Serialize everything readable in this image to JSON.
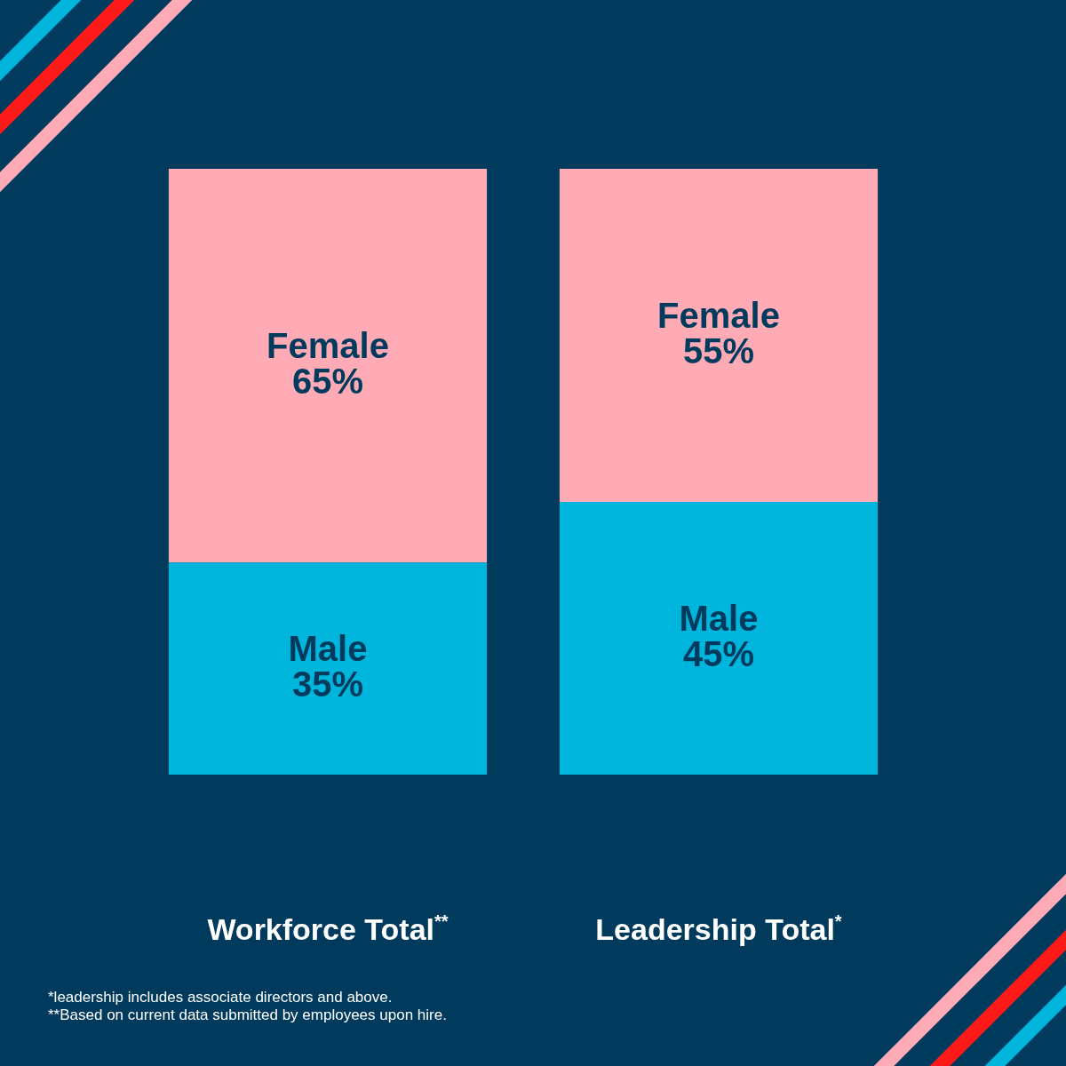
{
  "chart_data": {
    "type": "bar",
    "stacked": true,
    "categories": [
      "Workforce Total$^{**}$",
      "Leadership Total$^{*}$"
    ],
    "series": [
      {
        "name": "Male",
        "color": "#00b5dc",
        "values": [
          35,
          45
        ],
        "value_labels": [
          "35%",
          "45%"
        ]
      },
      {
        "name": "Female",
        "color": "#ffabb5",
        "values": [
          65,
          55
        ],
        "value_labels": [
          "65%",
          "55%"
        ]
      }
    ],
    "legend": false,
    "grid": false,
    "tick_labels": "x",
    "annotations": [
      "*leadership includes associate directors and above.",
      "**Based on current data submitted by employees upon hire."
    ]
  }
}
